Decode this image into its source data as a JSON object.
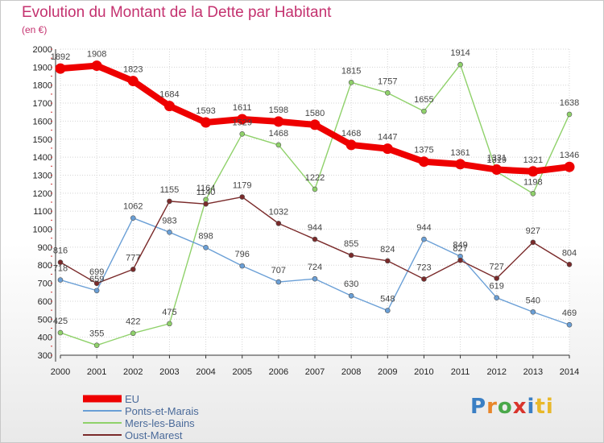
{
  "header": {
    "title": "Evolution du Montant de la Dette par Habitant",
    "subtitle": "(en €)"
  },
  "logo": {
    "text": "Proxiti",
    "letters": [
      "P",
      "r",
      "o",
      "x",
      "i",
      "ti"
    ]
  },
  "chart_data": {
    "type": "line",
    "title": "Evolution du Montant de la Dette par Habitant",
    "ylabel": "(en €)",
    "xlabel": "",
    "x": [
      2000,
      2001,
      2002,
      2003,
      2004,
      2005,
      2006,
      2007,
      2008,
      2009,
      2010,
      2011,
      2012,
      2013,
      2014
    ],
    "ylim": [
      300,
      2000
    ],
    "yticks": [
      300,
      400,
      500,
      600,
      700,
      800,
      900,
      1000,
      1100,
      1200,
      1300,
      1400,
      1500,
      1600,
      1700,
      1800,
      1900,
      2000
    ],
    "grid": true,
    "legend_position": "bottom-left",
    "series": [
      {
        "name": "Mers-les-Bains",
        "color": "#8fd16a",
        "values": [
          425,
          355,
          422,
          475,
          1164,
          1529,
          1468,
          1222,
          1815,
          1757,
          1655,
          1914,
          1319,
          1198,
          1638
        ]
      },
      {
        "name": "Ponts-et-Marais",
        "color": "#6a9fd6",
        "values": [
          718,
          659,
          1062,
          983,
          898,
          796,
          707,
          724,
          630,
          548,
          944,
          849,
          619,
          540,
          469
        ]
      },
      {
        "name": "Oust-Marest",
        "color": "#7a2a2a",
        "values": [
          816,
          699,
          777,
          1155,
          1140,
          1179,
          1032,
          944,
          855,
          824,
          723,
          827,
          727,
          927,
          804
        ]
      },
      {
        "name": "EU",
        "color": "#ee0000",
        "values": [
          1892,
          1908,
          1823,
          1684,
          1593,
          1611,
          1598,
          1580,
          1468,
          1447,
          1375,
          1361,
          1331,
          1321,
          1346
        ]
      }
    ],
    "legend_order": [
      "EU",
      "Ponts-et-Marais",
      "Mers-les-Bains",
      "Oust-Marest"
    ]
  }
}
